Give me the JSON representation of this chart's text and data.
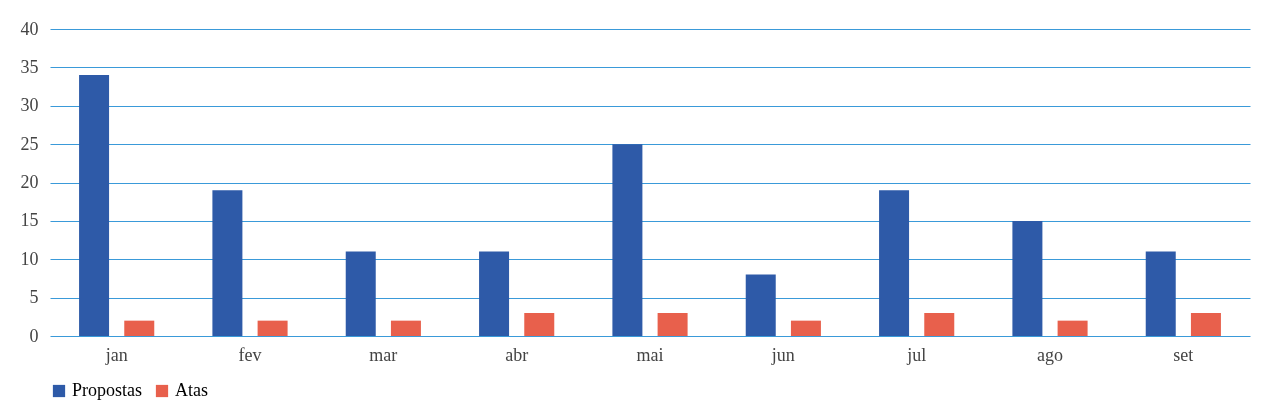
{
  "chart_data": {
    "type": "bar",
    "categories": [
      "jan",
      "fev",
      "mar",
      "abr",
      "mai",
      "jun",
      "jul",
      "ago",
      "set"
    ],
    "series": [
      {
        "name": "Propostas",
        "color": "#2e5aa8",
        "values": [
          34,
          19,
          11,
          11,
          25,
          8,
          19,
          15,
          11
        ]
      },
      {
        "name": "Atas",
        "color": "#e8604c",
        "values": [
          2,
          2,
          2,
          3,
          3,
          2,
          3,
          2,
          3
        ]
      }
    ],
    "ylim": [
      0,
      40
    ],
    "yticks": [
      0,
      5,
      10,
      15,
      20,
      25,
      30,
      35,
      40
    ],
    "grid": "y",
    "legend": "bottom"
  }
}
